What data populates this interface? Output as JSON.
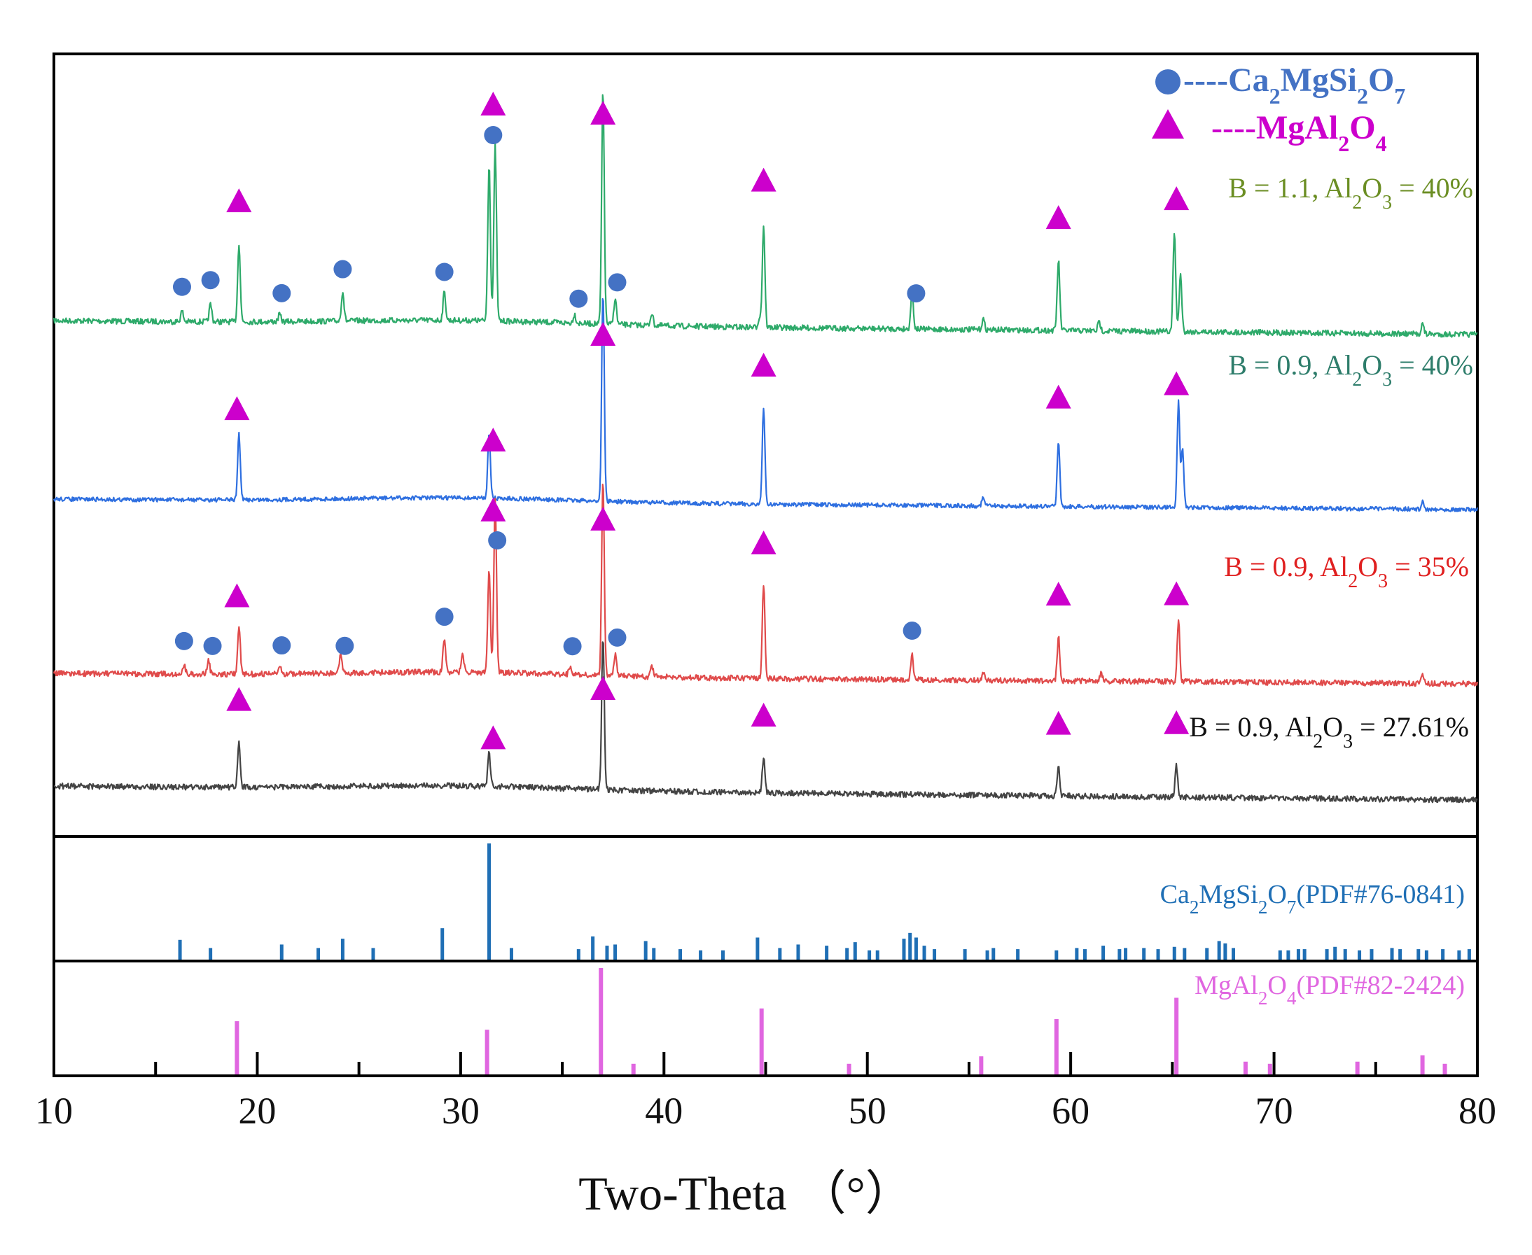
{
  "chart_data": {
    "type": "line",
    "title": "",
    "xlabel": "Two-Theta （°）",
    "ylabel": "",
    "xlim": [
      10,
      80
    ],
    "x_ticks": [
      10,
      20,
      30,
      40,
      50,
      60,
      70,
      80
    ],
    "grid": false,
    "legend": {
      "position": "top-right",
      "entries": [
        {
          "marker": "circle",
          "color": "#4472C4",
          "prefix": "----",
          "label": "Ca2MgSi2O7",
          "parts": [
            [
              "Ca",
              ""
            ],
            [
              "2",
              "sub"
            ],
            [
              "MgSi",
              ""
            ],
            [
              "2",
              "sub"
            ],
            [
              "O",
              ""
            ],
            [
              "7",
              "sub"
            ]
          ]
        },
        {
          "marker": "triangle",
          "color": "#CC00CC",
          "prefix": "----",
          "label": "MgAl2O4",
          "parts": [
            [
              "MgAl",
              ""
            ],
            [
              "2",
              "sub"
            ],
            [
              "O",
              ""
            ],
            [
              "4",
              "sub"
            ]
          ]
        }
      ]
    },
    "series": [
      {
        "name": "B = 1.1, Al2O3 = 40%",
        "color": "#2EAA6A",
        "label_color": "#6B8E23",
        "label_parts": [
          [
            "B = 1.1, Al",
            ""
          ],
          [
            "2",
            "sub"
          ],
          [
            "O",
            ""
          ],
          [
            "3",
            "sub"
          ],
          [
            " = 40%",
            ""
          ]
        ],
        "baseline": [
          [
            10,
            0.995
          ],
          [
            80,
            1.0
          ]
        ],
        "peaks": [
          [
            16.3,
            0.06
          ],
          [
            17.7,
            0.1
          ],
          [
            19.1,
            0.45
          ],
          [
            21.1,
            0.04
          ],
          [
            24.2,
            0.17
          ],
          [
            29.2,
            0.16
          ],
          [
            31.4,
            0.9
          ],
          [
            31.7,
            1.0
          ],
          [
            35.6,
            0.05
          ],
          [
            37.0,
            1.33
          ],
          [
            37.6,
            0.15
          ],
          [
            39.4,
            0.07
          ],
          [
            44.7,
            0.06
          ],
          [
            44.9,
            0.58
          ],
          [
            52.2,
            0.22
          ],
          [
            55.7,
            0.06
          ],
          [
            59.4,
            0.4
          ],
          [
            61.4,
            0.05
          ],
          [
            65.1,
            0.57
          ],
          [
            65.4,
            0.33
          ],
          [
            77.3,
            0.06
          ]
        ]
      },
      {
        "name": "B = 0.9, Al2O3 = 40%",
        "color": "#2E6FE0",
        "label_color": "#2E7D6B",
        "label_parts": [
          [
            "B = 0.9, Al",
            ""
          ],
          [
            "2",
            "sub"
          ],
          [
            "O",
            ""
          ],
          [
            "3",
            "sub"
          ],
          [
            " = 40%",
            ""
          ]
        ],
        "baseline": [
          [
            10,
            0.0
          ],
          [
            80,
            0.0
          ]
        ],
        "peaks": [
          [
            19.1,
            0.38
          ],
          [
            31.4,
            0.38
          ],
          [
            37.0,
            1.2
          ],
          [
            44.9,
            0.55
          ],
          [
            55.7,
            0.05
          ],
          [
            59.4,
            0.38
          ],
          [
            65.3,
            0.6
          ],
          [
            65.5,
            0.33
          ],
          [
            77.3,
            0.04
          ]
        ]
      },
      {
        "name": "B = 0.9, Al2O3 = 35%",
        "color": "#E04B4B",
        "label_color": "#E02020",
        "label_parts": [
          [
            "B = 0.9, Al",
            ""
          ],
          [
            "2",
            "sub"
          ],
          [
            "O",
            ""
          ],
          [
            "3",
            "sub"
          ],
          [
            " = 35%",
            ""
          ]
        ],
        "baseline": [
          [
            10,
            0.0
          ],
          [
            80,
            0.0
          ]
        ],
        "peaks": [
          [
            16.4,
            0.05
          ],
          [
            17.6,
            0.08
          ],
          [
            19.1,
            0.28
          ],
          [
            21.1,
            0.04
          ],
          [
            24.1,
            0.1
          ],
          [
            29.2,
            0.2
          ],
          [
            30.1,
            0.1
          ],
          [
            31.4,
            0.6
          ],
          [
            31.7,
            1.0
          ],
          [
            35.4,
            0.05
          ],
          [
            37.0,
            1.12
          ],
          [
            37.6,
            0.12
          ],
          [
            39.4,
            0.06
          ],
          [
            44.9,
            0.53
          ],
          [
            52.2,
            0.14
          ],
          [
            55.7,
            0.04
          ],
          [
            59.4,
            0.25
          ],
          [
            61.5,
            0.04
          ],
          [
            65.3,
            0.35
          ],
          [
            77.3,
            0.05
          ]
        ]
      },
      {
        "name": "B = 0.9, Al2O3 = 27.61%",
        "color": "#444444",
        "label_color": "#111111",
        "label_parts": [
          [
            "B = 0.9, Al",
            ""
          ],
          [
            "2",
            "sub"
          ],
          [
            "O",
            ""
          ],
          [
            "3",
            "sub"
          ],
          [
            " = 27.61%",
            ""
          ]
        ],
        "baseline": [
          [
            10,
            0.0
          ],
          [
            80,
            0.0
          ]
        ],
        "peaks": [
          [
            19.1,
            0.26
          ],
          [
            31.4,
            0.19
          ],
          [
            37.0,
            0.88
          ],
          [
            44.9,
            0.2
          ],
          [
            59.4,
            0.17
          ],
          [
            65.2,
            0.18
          ]
        ]
      }
    ],
    "markers": [
      {
        "series": 0,
        "x": [
          16.3,
          17.7,
          21.2,
          24.2,
          29.2,
          31.6,
          35.8,
          37.7,
          52.4
        ],
        "shape": "circle"
      },
      {
        "series": 0,
        "x": [
          19.1,
          31.6,
          37.0,
          44.9,
          59.4,
          65.2
        ],
        "shape": "triangle"
      },
      {
        "series": 1,
        "x": [
          19.0,
          31.6,
          37.0,
          44.9,
          59.4,
          65.2
        ],
        "shape": "triangle"
      },
      {
        "series": 2,
        "x": [
          16.4,
          17.8,
          21.2,
          24.3,
          29.2,
          31.8,
          35.5,
          37.7,
          52.2
        ],
        "shape": "circle"
      },
      {
        "series": 2,
        "x": [
          19.0,
          31.6,
          37.0,
          44.9,
          59.4,
          65.2
        ],
        "shape": "triangle"
      },
      {
        "series": 3,
        "x": [
          19.1,
          31.6,
          37.0,
          44.9,
          59.4,
          65.2
        ],
        "shape": "triangle"
      }
    ],
    "reference_patterns": [
      {
        "label": "Ca2MgSi2O7(PDF#76-0841)",
        "color": "#1F6FB5",
        "label_parts": [
          [
            "Ca",
            ""
          ],
          [
            "2",
            "sub"
          ],
          [
            "MgSi",
            ""
          ],
          [
            "2",
            "sub"
          ],
          [
            "O",
            ""
          ],
          [
            "7",
            "sub"
          ],
          [
            "(PDF#76-0841)",
            ""
          ]
        ],
        "peaks": [
          [
            16.2,
            0.17
          ],
          [
            17.7,
            0.1
          ],
          [
            21.2,
            0.13
          ],
          [
            23.0,
            0.1
          ],
          [
            24.2,
            0.18
          ],
          [
            25.7,
            0.1
          ],
          [
            29.1,
            0.27
          ],
          [
            31.4,
            1.0
          ],
          [
            32.5,
            0.1
          ],
          [
            35.8,
            0.09
          ],
          [
            36.5,
            0.2
          ],
          [
            37.2,
            0.12
          ],
          [
            37.6,
            0.13
          ],
          [
            39.1,
            0.16
          ],
          [
            39.5,
            0.1
          ],
          [
            40.8,
            0.09
          ],
          [
            41.8,
            0.08
          ],
          [
            42.9,
            0.08
          ],
          [
            44.6,
            0.19
          ],
          [
            45.7,
            0.1
          ],
          [
            46.6,
            0.13
          ],
          [
            48.0,
            0.12
          ],
          [
            49.0,
            0.1
          ],
          [
            49.4,
            0.15
          ],
          [
            50.1,
            0.08
          ],
          [
            50.5,
            0.08
          ],
          [
            51.8,
            0.18
          ],
          [
            52.1,
            0.23
          ],
          [
            52.4,
            0.19
          ],
          [
            52.8,
            0.12
          ],
          [
            53.3,
            0.09
          ],
          [
            54.8,
            0.09
          ],
          [
            55.9,
            0.08
          ],
          [
            56.2,
            0.1
          ],
          [
            57.4,
            0.09
          ],
          [
            59.3,
            0.08
          ],
          [
            60.3,
            0.1
          ],
          [
            60.7,
            0.09
          ],
          [
            61.6,
            0.12
          ],
          [
            62.4,
            0.09
          ],
          [
            62.7,
            0.1
          ],
          [
            63.6,
            0.1
          ],
          [
            64.3,
            0.09
          ],
          [
            65.1,
            0.11
          ],
          [
            65.6,
            0.1
          ],
          [
            66.7,
            0.1
          ],
          [
            67.3,
            0.16
          ],
          [
            67.6,
            0.14
          ],
          [
            68.0,
            0.1
          ],
          [
            70.3,
            0.08
          ],
          [
            70.7,
            0.08
          ],
          [
            71.2,
            0.09
          ],
          [
            71.5,
            0.09
          ],
          [
            72.6,
            0.09
          ],
          [
            73.0,
            0.11
          ],
          [
            73.5,
            0.09
          ],
          [
            74.2,
            0.08
          ],
          [
            74.8,
            0.09
          ],
          [
            75.8,
            0.1
          ],
          [
            76.2,
            0.09
          ],
          [
            77.1,
            0.09
          ],
          [
            77.5,
            0.08
          ],
          [
            78.3,
            0.09
          ],
          [
            79.1,
            0.08
          ],
          [
            79.6,
            0.09
          ]
        ]
      },
      {
        "label": "MgAl2O4(PDF#82-2424)",
        "color": "#E066E0",
        "label_parts": [
          [
            "MgAl",
            ""
          ],
          [
            "2",
            "sub"
          ],
          [
            "O",
            ""
          ],
          [
            "4",
            "sub"
          ],
          [
            "(PDF#82-2424)",
            ""
          ]
        ],
        "peaks": [
          [
            19.0,
            0.5
          ],
          [
            31.3,
            0.42
          ],
          [
            36.9,
            1.0
          ],
          [
            38.5,
            0.1
          ],
          [
            44.8,
            0.62
          ],
          [
            49.1,
            0.1
          ],
          [
            55.6,
            0.17
          ],
          [
            59.3,
            0.52
          ],
          [
            65.2,
            0.72
          ],
          [
            68.6,
            0.12
          ],
          [
            69.8,
            0.1
          ],
          [
            74.1,
            0.12
          ],
          [
            77.3,
            0.18
          ],
          [
            78.4,
            0.1
          ]
        ]
      }
    ]
  }
}
